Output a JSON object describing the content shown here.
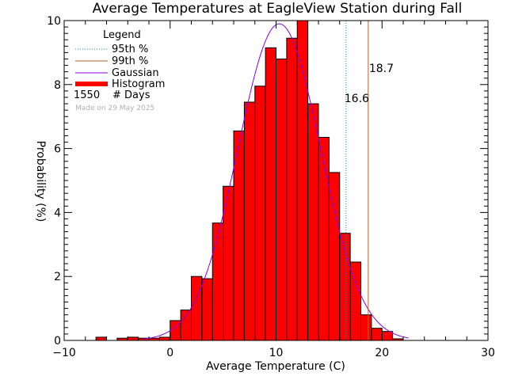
{
  "colors": {
    "histogram": "#ff0000",
    "gaussian": "#8a00e6",
    "p95": "#1a8cbe",
    "p99": "#b3602a",
    "axis": "#000000"
  },
  "chart_data": {
    "type": "bar",
    "title": "Average Temperatures at EagleView Station during Fall",
    "xlabel": "Average Temperature (C)",
    "ylabel": "Probability  (%)",
    "xlim": [
      -10,
      30
    ],
    "ylim": [
      0,
      10
    ],
    "x_ticks": [
      "−10",
      "0",
      "10",
      "20",
      "30"
    ],
    "y_ticks": [
      "0",
      "2",
      "4",
      "6",
      "8",
      "10"
    ],
    "bin_width": 1,
    "bin_left_edges": [
      -7,
      -6,
      -5,
      -4,
      -3,
      -2,
      -1,
      0,
      1,
      2,
      3,
      4,
      5,
      6,
      7,
      8,
      9,
      10,
      11,
      12,
      13,
      14,
      15,
      16,
      17,
      18,
      19,
      20,
      21
    ],
    "values": [
      0.1,
      0,
      0.07,
      0.1,
      0.07,
      0.07,
      0.1,
      0.62,
      0.95,
      2.0,
      1.93,
      3.67,
      4.82,
      6.55,
      7.45,
      7.95,
      9.15,
      8.8,
      9.45,
      10.0,
      7.4,
      6.35,
      5.25,
      3.35,
      2.45,
      0.8,
      0.38,
      0.28,
      0.05
    ],
    "gaussian": {
      "mean": 10.3,
      "sigma": 3.9,
      "peak": 9.9,
      "range": [
        -2.5,
        22.5
      ]
    },
    "p95": {
      "value": 16.6,
      "label": "16.6"
    },
    "p99": {
      "value": 18.7,
      "label": "18.7"
    },
    "grid": false,
    "legend_position": "top-left",
    "legend": {
      "title": "Legend",
      "entries": [
        "95th %",
        "99th %",
        "Gaussian",
        "Histogram"
      ],
      "days_count": "1550",
      "days_label": "# Days"
    },
    "credit": "Made on 29 May 2025"
  }
}
